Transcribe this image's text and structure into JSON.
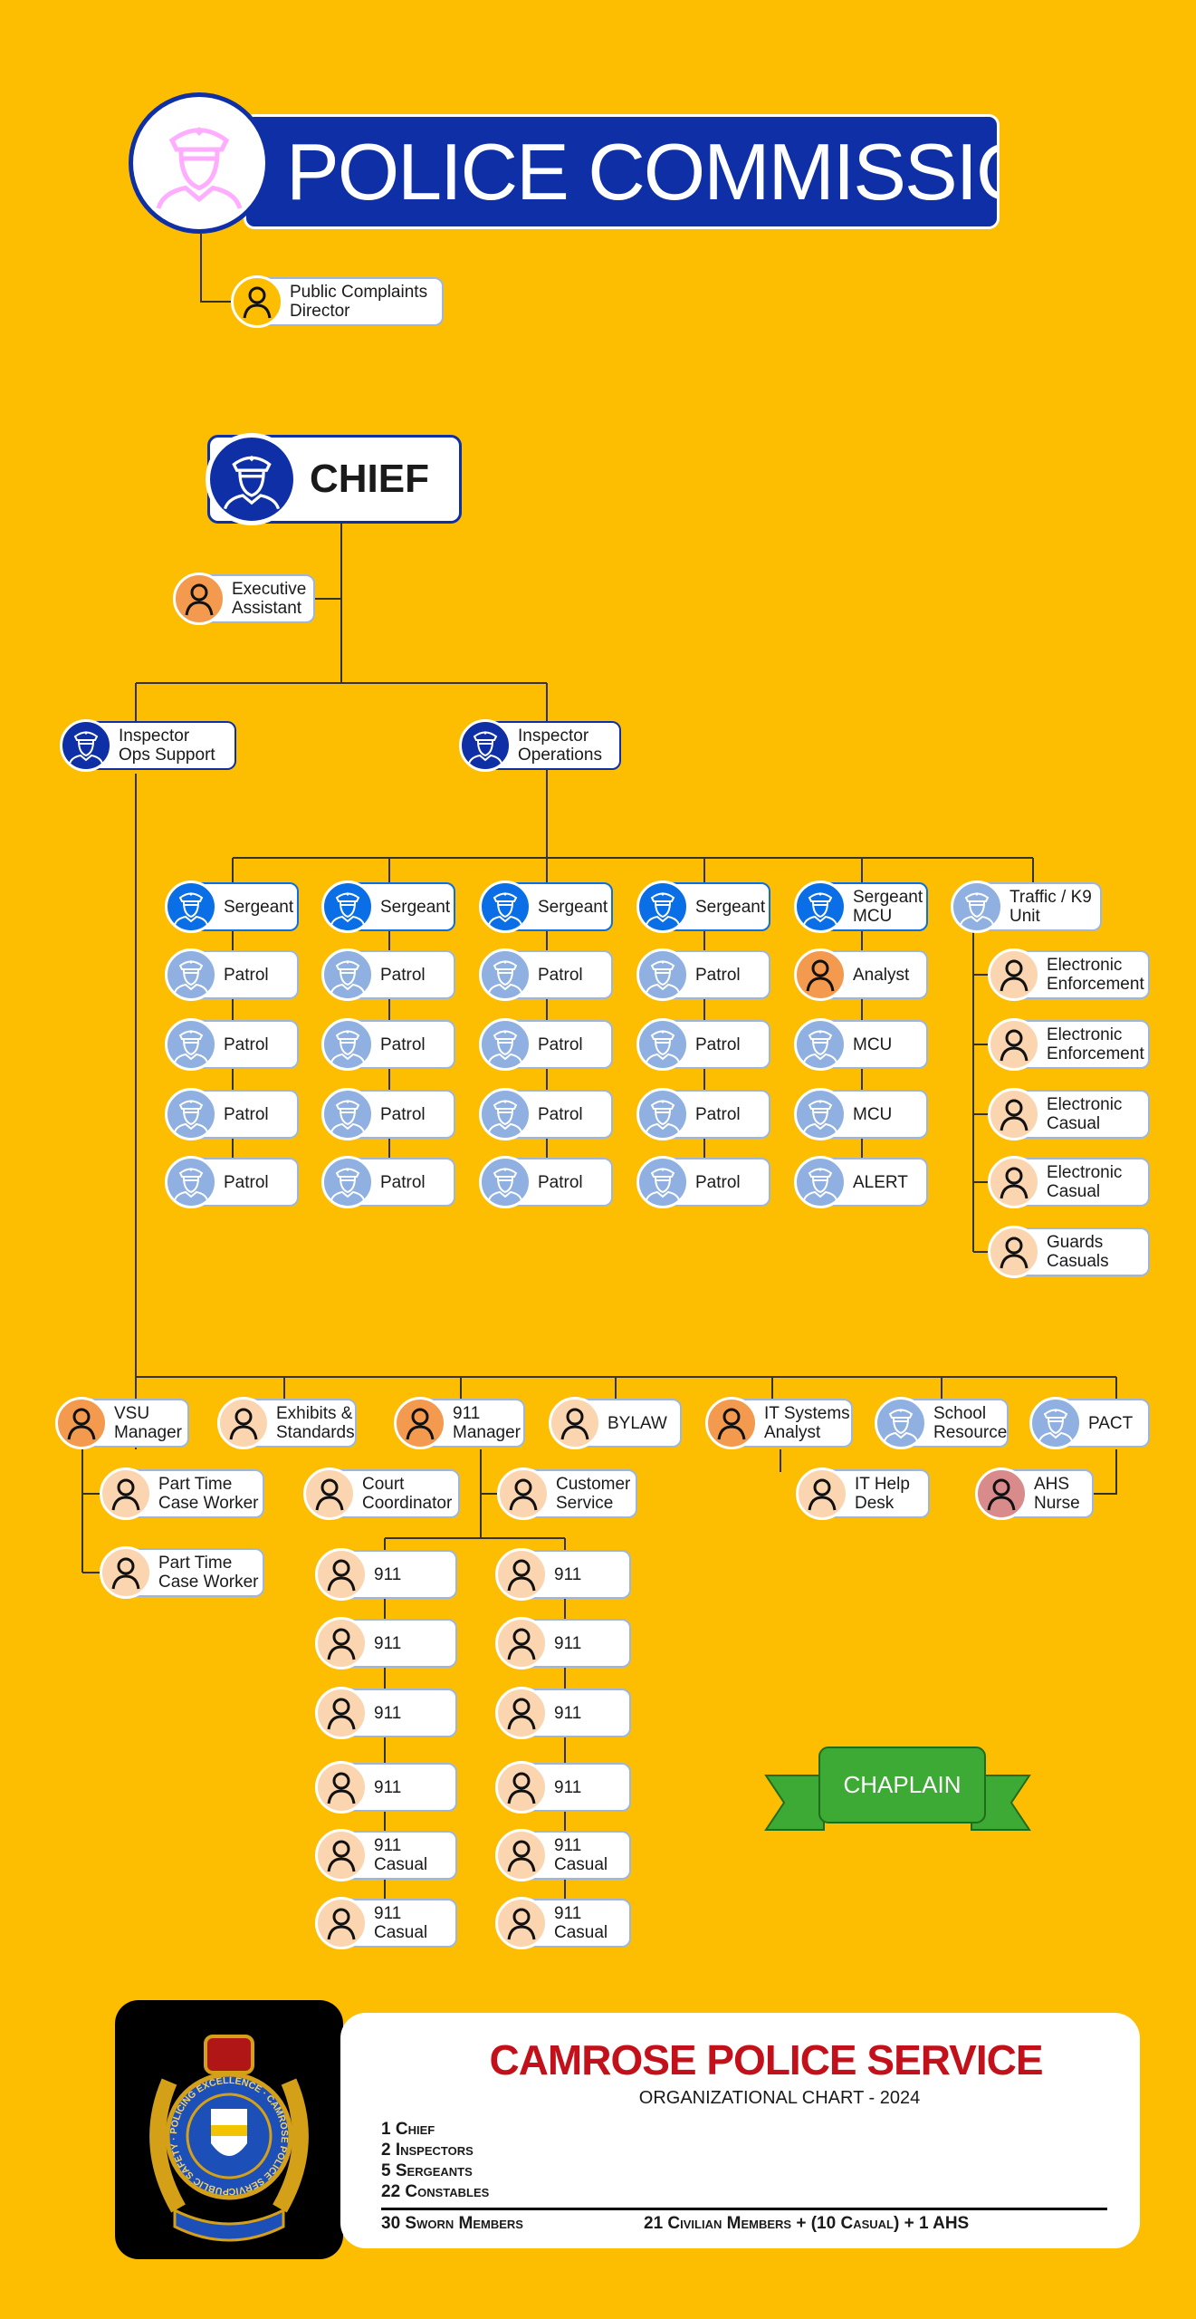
{
  "header": {
    "title": "POLICE COMMISSION"
  },
  "chief": {
    "label": "CHIEF"
  },
  "colors": {
    "background": "#FDBD00",
    "navy": "#0F2FA6",
    "sergeant": "#0A6EE6",
    "constable": "#8FB0E0",
    "civilian_manager": "#F39A4F",
    "civilian": "#FBD5B0",
    "complaints": "#FDBD00",
    "ahs": "#D98A8A",
    "chaplain": "#3DAA35"
  },
  "nodes": [
    {
      "label": "Public Complaints\nDirector",
      "icon": "person-icon",
      "color": "#FDBD00"
    },
    {
      "label": "Executive\nAssistant",
      "icon": "person-icon",
      "color": "#F39A4F"
    },
    {
      "label": "Inspector\nOps Support",
      "icon": "officer-icon",
      "color": "#0F2FA6"
    },
    {
      "label": "Inspector\nOperations",
      "icon": "officer-icon",
      "color": "#0F2FA6"
    },
    {
      "label": "Sergeant",
      "icon": "officer-icon",
      "color": "#0A6EE6"
    },
    {
      "label": "Sergeant",
      "icon": "officer-icon",
      "color": "#0A6EE6"
    },
    {
      "label": "Sergeant",
      "icon": "officer-icon",
      "color": "#0A6EE6"
    },
    {
      "label": "Sergeant",
      "icon": "officer-icon",
      "color": "#0A6EE6"
    },
    {
      "label": "Sergeant\nMCU",
      "icon": "officer-icon",
      "color": "#0A6EE6"
    },
    {
      "label": "Traffic / K9\nUnit",
      "icon": "officer-icon",
      "color": "#8FB0E0"
    },
    {
      "label": "Patrol",
      "icon": "officer-icon",
      "color": "#8FB0E0"
    },
    {
      "label": "Patrol",
      "icon": "officer-icon",
      "color": "#8FB0E0"
    },
    {
      "label": "Patrol",
      "icon": "officer-icon",
      "color": "#8FB0E0"
    },
    {
      "label": "Patrol",
      "icon": "officer-icon",
      "color": "#8FB0E0"
    },
    {
      "label": "Patrol",
      "icon": "officer-icon",
      "color": "#8FB0E0"
    },
    {
      "label": "Patrol",
      "icon": "officer-icon",
      "color": "#8FB0E0"
    },
    {
      "label": "Patrol",
      "icon": "officer-icon",
      "color": "#8FB0E0"
    },
    {
      "label": "Patrol",
      "icon": "officer-icon",
      "color": "#8FB0E0"
    },
    {
      "label": "Patrol",
      "icon": "officer-icon",
      "color": "#8FB0E0"
    },
    {
      "label": "Patrol",
      "icon": "officer-icon",
      "color": "#8FB0E0"
    },
    {
      "label": "Patrol",
      "icon": "officer-icon",
      "color": "#8FB0E0"
    },
    {
      "label": "Patrol",
      "icon": "officer-icon",
      "color": "#8FB0E0"
    },
    {
      "label": "Patrol",
      "icon": "officer-icon",
      "color": "#8FB0E0"
    },
    {
      "label": "Patrol",
      "icon": "officer-icon",
      "color": "#8FB0E0"
    },
    {
      "label": "Patrol",
      "icon": "officer-icon",
      "color": "#8FB0E0"
    },
    {
      "label": "Patrol",
      "icon": "officer-icon",
      "color": "#8FB0E0"
    },
    {
      "label": "Analyst",
      "icon": "person-icon",
      "color": "#F39A4F"
    },
    {
      "label": "MCU",
      "icon": "officer-icon",
      "color": "#8FB0E0"
    },
    {
      "label": "MCU",
      "icon": "officer-icon",
      "color": "#8FB0E0"
    },
    {
      "label": "ALERT",
      "icon": "officer-icon",
      "color": "#8FB0E0"
    },
    {
      "label": "Electronic\nEnforcement",
      "icon": "person-icon",
      "color": "#FBD5B0"
    },
    {
      "label": "Electronic\nEnforcement",
      "icon": "person-icon",
      "color": "#FBD5B0"
    },
    {
      "label": "Electronic\nCasual",
      "icon": "person-icon",
      "color": "#FBD5B0"
    },
    {
      "label": "Electronic\nCasual",
      "icon": "person-icon",
      "color": "#FBD5B0"
    },
    {
      "label": "Guards\nCasuals",
      "icon": "person-icon",
      "color": "#FBD5B0"
    },
    {
      "label": "VSU\nManager",
      "icon": "person-icon",
      "color": "#F39A4F"
    },
    {
      "label": "Exhibits &\nStandards",
      "icon": "person-icon",
      "color": "#FBD5B0"
    },
    {
      "label": "911\nManager",
      "icon": "person-icon",
      "color": "#F39A4F"
    },
    {
      "label": "BYLAW",
      "icon": "person-icon",
      "color": "#FBD5B0"
    },
    {
      "label": "IT Systems\nAnalyst",
      "icon": "person-icon",
      "color": "#F39A4F"
    },
    {
      "label": "School\nResource",
      "icon": "officer-icon",
      "color": "#8FB0E0"
    },
    {
      "label": "PACT",
      "icon": "officer-icon",
      "color": "#8FB0E0"
    },
    {
      "label": "Part Time\nCase Worker",
      "icon": "person-icon",
      "color": "#FBD5B0"
    },
    {
      "label": "Part Time\nCase Worker",
      "icon": "person-icon",
      "color": "#FBD5B0"
    },
    {
      "label": "Court\nCoordinator",
      "icon": "person-icon",
      "color": "#FBD5B0"
    },
    {
      "label": "Customer\nService",
      "icon": "person-icon",
      "color": "#FBD5B0"
    },
    {
      "label": "911",
      "icon": "person-icon",
      "color": "#FBD5B0"
    },
    {
      "label": "911",
      "icon": "person-icon",
      "color": "#FBD5B0"
    },
    {
      "label": "911",
      "icon": "person-icon",
      "color": "#FBD5B0"
    },
    {
      "label": "911",
      "icon": "person-icon",
      "color": "#FBD5B0"
    },
    {
      "label": "911\nCasual",
      "icon": "person-icon",
      "color": "#FBD5B0"
    },
    {
      "label": "911\nCasual",
      "icon": "person-icon",
      "color": "#FBD5B0"
    },
    {
      "label": "911",
      "icon": "person-icon",
      "color": "#FBD5B0"
    },
    {
      "label": "911",
      "icon": "person-icon",
      "color": "#FBD5B0"
    },
    {
      "label": "911",
      "icon": "person-icon",
      "color": "#FBD5B0"
    },
    {
      "label": "911",
      "icon": "person-icon",
      "color": "#FBD5B0"
    },
    {
      "label": "911\nCasual",
      "icon": "person-icon",
      "color": "#FBD5B0"
    },
    {
      "label": "911\nCasual",
      "icon": "person-icon",
      "color": "#FBD5B0"
    },
    {
      "label": "IT Help\nDesk",
      "icon": "person-icon",
      "color": "#FBD5B0"
    },
    {
      "label": "AHS\nNurse",
      "icon": "person-icon",
      "color": "#D98A8A"
    }
  ],
  "chaplain": {
    "label": "CHAPLAIN"
  },
  "footer": {
    "title": "CAMROSE POLICE SERVICE",
    "subtitle": "ORGANIZATIONAL CHART - 2024",
    "stats": [
      "1 Chief",
      "2 Inspectors",
      "5 Sergeants",
      "22 Constables"
    ],
    "sworn_total": "30 Sworn Members",
    "civilian_total": "21 Civilian Members + (10 Casual) + 1 AHS",
    "badge_text": "PUBLIC SAFETY · POLICING EXCELLENCE · CAMROSE POLICE SERVICE"
  }
}
